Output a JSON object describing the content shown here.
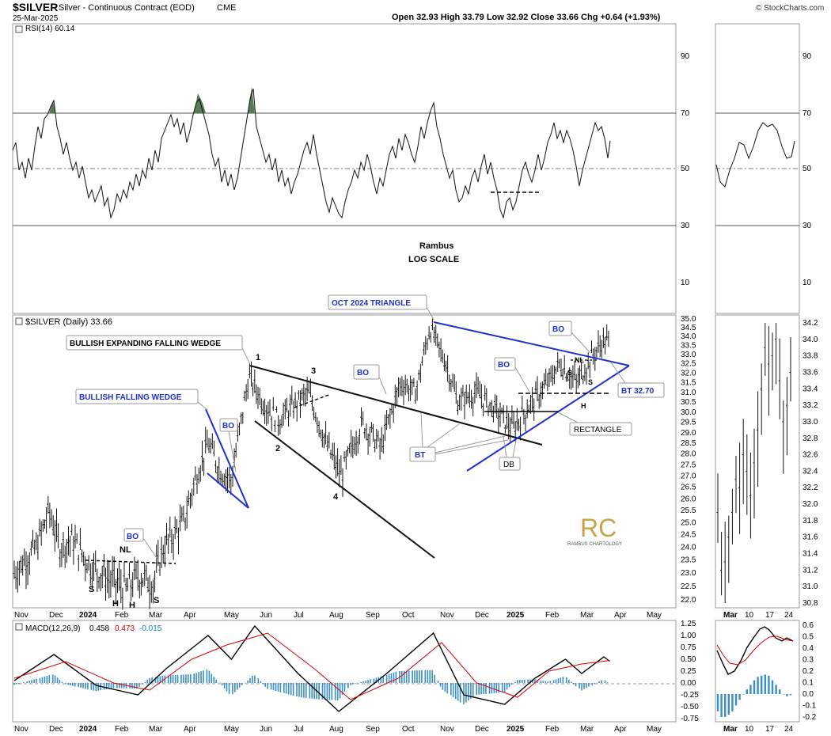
{
  "header": {
    "symbol": "$SILVER",
    "description": "Silver - Continuous Contract (EOD)",
    "exchange": "CME",
    "date": "25-Mar-2025",
    "ohlc_text": "Open 32.93  High 33.79  Low 32.92  Close 33.66  Chg +0.64 (+1.93%)",
    "watermark": "© StockCharts.com"
  },
  "notes": {
    "author": "Rambus",
    "scale": "LOG SCALE"
  },
  "rsi": {
    "label": "RSI(14) 60.14",
    "ticks": [
      "90",
      "70",
      "50",
      "30",
      "10"
    ]
  },
  "price": {
    "label": "$SILVER (Daily) 33.66",
    "ticks": [
      "35.0",
      "34.5",
      "34.0",
      "33.5",
      "33.0",
      "32.5",
      "32.0",
      "31.5",
      "31.0",
      "30.5",
      "30.0",
      "29.5",
      "29.0",
      "28.5",
      "28.0",
      "27.5",
      "27.0",
      "26.5",
      "26.0",
      "25.5",
      "25.0",
      "24.5",
      "24.0",
      "23.5",
      "23.0",
      "22.5",
      "22.0"
    ],
    "side_ticks": [
      "34.2",
      "34.0",
      "33.8",
      "33.6",
      "33.4",
      "33.2",
      "33.0",
      "32.8",
      "32.6",
      "32.4",
      "32.2",
      "32.0",
      "31.8",
      "31.6",
      "31.4",
      "31.2",
      "31.0",
      "30.8"
    ]
  },
  "macd": {
    "label": "MACD(12,26,9)",
    "values": [
      "0.458",
      "0.473",
      "-0.015"
    ],
    "ticks": [
      "1.25",
      "1.00",
      "0.75",
      "0.50",
      "0.25",
      "0.00",
      "-0.25",
      "-0.50",
      "-0.75"
    ],
    "side_ticks": [
      "0.6",
      "0.5",
      "0.4",
      "0.3",
      "0.2",
      "0.1",
      "0.0",
      "-0.1",
      "-0.2"
    ]
  },
  "xaxis": {
    "months": [
      "Nov",
      "Dec",
      "2024",
      "Feb",
      "Mar",
      "Apr",
      "May",
      "Jun",
      "Jul",
      "Aug",
      "Sep",
      "Oct",
      "Nov",
      "Dec",
      "2025",
      "Feb",
      "Mar",
      "Apr",
      "May"
    ],
    "side_months": [
      "Mar",
      "10",
      "17",
      "24"
    ]
  },
  "annotations": {
    "bullish_wedge": "BULLISH FALLING WEDGE",
    "bullish_expanding": "BULLISH EXPANDING FALLING WEDGE",
    "triangle": "OCT 2024 TRIANGLE",
    "bo": "BO",
    "bt": "BT",
    "bt_value": "BT 32.70",
    "rectangle": "RECTANGLE",
    "db": "DB",
    "nl": "NL",
    "s": "S",
    "h": "H",
    "n1": "1",
    "n2": "2",
    "n3": "3",
    "n4": "4",
    "logo_letters": "RC",
    "logo_text": "RAMBUS CHARTOLOGY"
  },
  "chart_data": {
    "type": "line",
    "log_scale": true,
    "price_ylim": [
      22.0,
      35.0
    ],
    "rsi_ylim": [
      0,
      100
    ],
    "macd_ylim": [
      -0.75,
      1.25
    ],
    "price_series": [
      {
        "date": "2023-11-01",
        "close": 23.0
      },
      {
        "date": "2023-11-20",
        "close": 24.0
      },
      {
        "date": "2023-12-01",
        "close": 25.5
      },
      {
        "date": "2023-12-10",
        "close": 24.0
      },
      {
        "date": "2023-12-20",
        "close": 24.3
      },
      {
        "date": "2024-01-05",
        "close": 23.3
      },
      {
        "date": "2024-01-20",
        "close": 22.8
      },
      {
        "date": "2024-02-05",
        "close": 22.4
      },
      {
        "date": "2024-02-15",
        "close": 22.9
      },
      {
        "date": "2024-02-28",
        "close": 22.6
      },
      {
        "date": "2024-03-08",
        "close": 24.0
      },
      {
        "date": "2024-03-25",
        "close": 25.0
      },
      {
        "date": "2024-04-05",
        "close": 27.0
      },
      {
        "date": "2024-04-15",
        "close": 28.5
      },
      {
        "date": "2024-04-25",
        "close": 27.3
      },
      {
        "date": "2024-05-05",
        "close": 26.8
      },
      {
        "date": "2024-05-20",
        "close": 31.8
      },
      {
        "date": "2024-06-01",
        "close": 30.5
      },
      {
        "date": "2024-06-14",
        "close": 29.6
      },
      {
        "date": "2024-07-10",
        "close": 31.0
      },
      {
        "date": "2024-07-25",
        "close": 28.5
      },
      {
        "date": "2024-08-07",
        "close": 27.0
      },
      {
        "date": "2024-08-25",
        "close": 29.5
      },
      {
        "date": "2024-09-10",
        "close": 28.3
      },
      {
        "date": "2024-09-27",
        "close": 31.5
      },
      {
        "date": "2024-10-10",
        "close": 31.0
      },
      {
        "date": "2024-10-22",
        "close": 34.5
      },
      {
        "date": "2024-11-05",
        "close": 32.5
      },
      {
        "date": "2024-11-15",
        "close": 30.5
      },
      {
        "date": "2024-12-01",
        "close": 31.0
      },
      {
        "date": "2024-12-15",
        "close": 30.2
      },
      {
        "date": "2025-01-01",
        "close": 29.2
      },
      {
        "date": "2025-01-15",
        "close": 30.3
      },
      {
        "date": "2025-01-31",
        "close": 31.5
      },
      {
        "date": "2025-02-10",
        "close": 32.5
      },
      {
        "date": "2025-02-25",
        "close": 31.5
      },
      {
        "date": "2025-03-10",
        "close": 32.9
      },
      {
        "date": "2025-03-20",
        "close": 33.8
      },
      {
        "date": "2025-03-25",
        "close": 33.66
      }
    ],
    "rsi_series": [
      {
        "date": "2023-11-01",
        "value": 58
      },
      {
        "date": "2023-11-25",
        "value": 45
      },
      {
        "date": "2023-12-03",
        "value": 72
      },
      {
        "date": "2023-12-15",
        "value": 40
      },
      {
        "date": "2024-01-05",
        "value": 45
      },
      {
        "date": "2024-01-20",
        "value": 33
      },
      {
        "date": "2024-02-05",
        "value": 38
      },
      {
        "date": "2024-02-20",
        "value": 43
      },
      {
        "date": "2024-03-10",
        "value": 65
      },
      {
        "date": "2024-03-25",
        "value": 73
      },
      {
        "date": "2024-04-12",
        "value": 75
      },
      {
        "date": "2024-04-25",
        "value": 50
      },
      {
        "date": "2024-05-20",
        "value": 80
      },
      {
        "date": "2024-06-10",
        "value": 45
      },
      {
        "date": "2024-07-12",
        "value": 62
      },
      {
        "date": "2024-08-05",
        "value": 33
      },
      {
        "date": "2024-08-25",
        "value": 55
      },
      {
        "date": "2024-09-10",
        "value": 48
      },
      {
        "date": "2024-10-01",
        "value": 62
      },
      {
        "date": "2024-10-22",
        "value": 75
      },
      {
        "date": "2024-11-12",
        "value": 40
      },
      {
        "date": "2024-12-01",
        "value": 46
      },
      {
        "date": "2024-12-20",
        "value": 37
      },
      {
        "date": "2025-01-15",
        "value": 48
      },
      {
        "date": "2025-02-05",
        "value": 66
      },
      {
        "date": "2025-02-28",
        "value": 45
      },
      {
        "date": "2025-03-15",
        "value": 67
      },
      {
        "date": "2025-03-25",
        "value": 60
      }
    ],
    "macd_series": [
      {
        "name": "MACD",
        "points": [
          {
            "date": "2023-11-01",
            "value": 0.05
          },
          {
            "date": "2023-12-05",
            "value": 0.6
          },
          {
            "date": "2024-01-10",
            "value": -0.05
          },
          {
            "date": "2024-02-15",
            "value": -0.25
          },
          {
            "date": "2024-03-10",
            "value": 0.3
          },
          {
            "date": "2024-04-15",
            "value": 1.0
          },
          {
            "date": "2024-05-05",
            "value": 0.5
          },
          {
            "date": "2024-05-25",
            "value": 1.2
          },
          {
            "date": "2024-07-01",
            "value": 0.2
          },
          {
            "date": "2024-08-05",
            "value": -0.6
          },
          {
            "date": "2024-09-15",
            "value": 0.2
          },
          {
            "date": "2024-10-25",
            "value": 1.05
          },
          {
            "date": "2024-11-20",
            "value": -0.25
          },
          {
            "date": "2024-12-25",
            "value": -0.45
          },
          {
            "date": "2025-01-20",
            "value": 0.1
          },
          {
            "date": "2025-02-15",
            "value": 0.5
          },
          {
            "date": "2025-03-01",
            "value": 0.2
          },
          {
            "date": "2025-03-20",
            "value": 0.55
          },
          {
            "date": "2025-03-25",
            "value": 0.458
          }
        ]
      },
      {
        "name": "Signal",
        "points": [
          {
            "date": "2023-11-01",
            "value": 0.1
          },
          {
            "date": "2023-12-15",
            "value": 0.45
          },
          {
            "date": "2024-01-25",
            "value": 0.0
          },
          {
            "date": "2024-02-25",
            "value": -0.15
          },
          {
            "date": "2024-04-01",
            "value": 0.5
          },
          {
            "date": "2024-05-01",
            "value": 0.8
          },
          {
            "date": "2024-06-05",
            "value": 1.05
          },
          {
            "date": "2024-07-15",
            "value": 0.3
          },
          {
            "date": "2024-08-15",
            "value": -0.35
          },
          {
            "date": "2024-09-25",
            "value": 0.1
          },
          {
            "date": "2024-11-01",
            "value": 0.85
          },
          {
            "date": "2024-12-01",
            "value": 0.0
          },
          {
            "date": "2025-01-05",
            "value": -0.3
          },
          {
            "date": "2025-02-01",
            "value": 0.25
          },
          {
            "date": "2025-03-01",
            "value": 0.4
          },
          {
            "date": "2025-03-25",
            "value": 0.473
          }
        ]
      }
    ]
  }
}
